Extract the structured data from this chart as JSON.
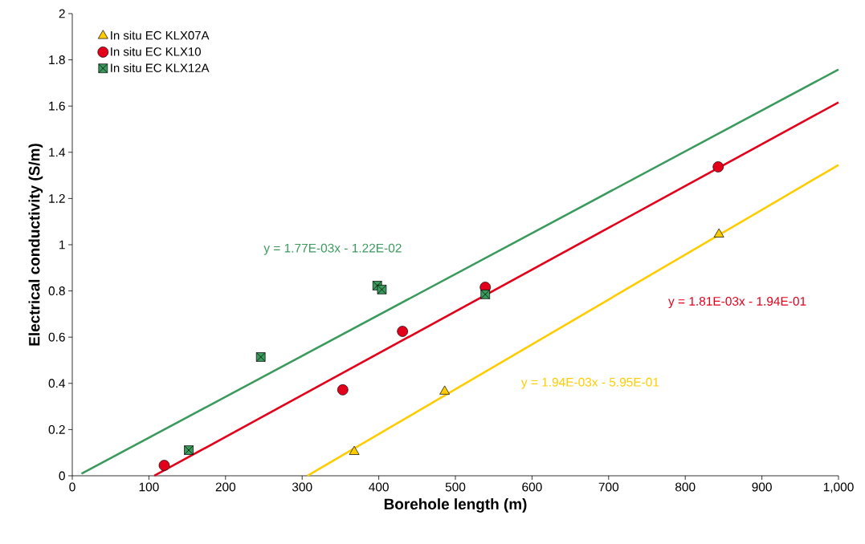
{
  "chart_data": {
    "type": "scatter",
    "xlabel": "Borehole length (m)",
    "ylabel": "Electrical conductivity (S/m)",
    "xlim": [
      0,
      1000
    ],
    "ylim": [
      0,
      2
    ],
    "xticks": [
      0,
      100,
      200,
      300,
      400,
      500,
      600,
      700,
      800,
      900,
      {
        "value": 1000,
        "label": "1,000"
      }
    ],
    "yticks": [
      0,
      0.2,
      0.4,
      0.6,
      0.8,
      1,
      1.2,
      1.4,
      1.6,
      1.8,
      2
    ],
    "grid": false,
    "legend": "top left",
    "series": [
      {
        "name": "In situ EC KLX07A",
        "color": "#ffcc00",
        "marker": "triangle",
        "x": [
          368,
          486,
          844
        ],
        "values": [
          0.104,
          0.365,
          1.045
        ]
      },
      {
        "name": "In situ EC KLX10",
        "color": "#e3001b",
        "marker": "circle",
        "x": [
          120,
          353,
          431,
          539,
          843
        ],
        "values": [
          0.045,
          0.372,
          0.625,
          0.816,
          1.337
        ]
      },
      {
        "name": "In situ EC KLX12A",
        "color": "#3a9a5c",
        "marker": "square",
        "x": [
          152,
          246,
          398,
          404,
          539
        ],
        "values": [
          0.111,
          0.514,
          0.823,
          0.806,
          0.785
        ]
      },
      {
        "type": "line",
        "color": "#3a9a5c",
        "x": [
          12,
          1000
        ],
        "values": [
          0.009,
          1.758
        ]
      },
      {
        "type": "line",
        "color": "#e3001b",
        "x": [
          107,
          1000
        ],
        "values": [
          0,
          1.616
        ]
      },
      {
        "type": "line",
        "color": "#ffcc00",
        "x": [
          307,
          1000
        ],
        "values": [
          0,
          1.345
        ]
      }
    ],
    "annotations": [
      "y = 1.77E-03x - 1.22E-02",
      "y = 1.81E-03x - 1.94E-01",
      "y = 1.94E-03x - 5.95E-01"
    ]
  }
}
